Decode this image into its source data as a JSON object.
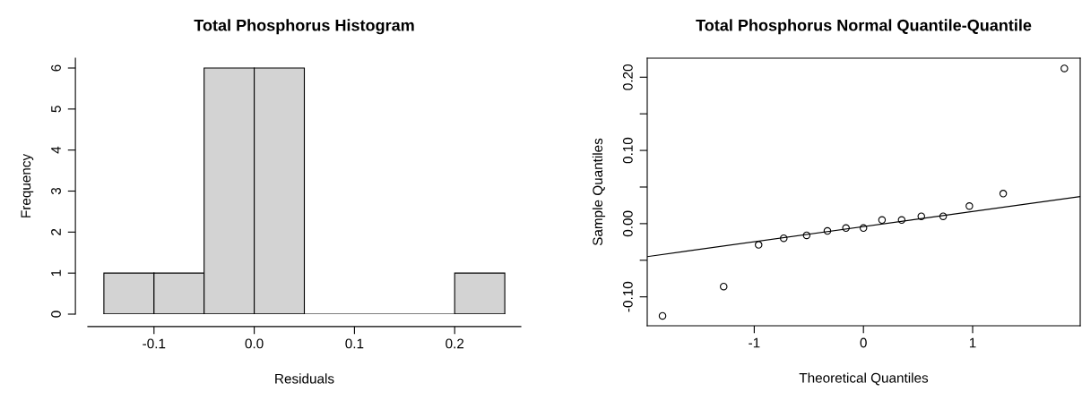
{
  "chart_data": [
    {
      "type": "histogram",
      "title": "Total Phosphorus Histogram",
      "xlabel": "Residuals",
      "ylabel": "Frequency",
      "bins": [
        -0.15,
        -0.1,
        -0.05,
        0.0,
        0.05,
        0.1,
        0.15,
        0.2,
        0.25
      ],
      "values": [
        1,
        1,
        6,
        6,
        0,
        0,
        0,
        1
      ],
      "color": "#d3d3d3",
      "xlim": [
        -0.166,
        0.266
      ],
      "xticks": [
        {
          "value": -0.1,
          "label": "-0.1"
        },
        {
          "value": 0.0,
          "label": "0.0"
        },
        {
          "value": 0.1,
          "label": "0.1"
        },
        {
          "value": 0.2,
          "label": "0.2"
        }
      ],
      "ylim": [
        0,
        6.24
      ],
      "yticks": [
        0,
        1,
        2,
        3,
        4,
        5,
        6
      ],
      "grid": false
    },
    {
      "type": "scatter",
      "title": "Total Phosphorus Normal Quantile-Quantile",
      "xlabel": "Theoretical Quantiles",
      "ylabel": "Sample Quantiles",
      "series": [
        {
          "type": "scatter",
          "color": "#000000",
          "marker": "circle",
          "x": [
            -1.84,
            -1.28,
            -0.96,
            -0.73,
            -0.52,
            -0.33,
            -0.16,
            0.0,
            0.17,
            0.35,
            0.53,
            0.73,
            0.97,
            1.28,
            1.84
          ],
          "values": [
            -0.126,
            -0.086,
            -0.029,
            -0.02,
            -0.016,
            -0.01,
            -0.006,
            -0.006,
            0.005,
            0.005,
            0.01,
            0.01,
            0.024,
            0.041,
            0.212
          ]
        },
        {
          "type": "line",
          "color": "#000000",
          "x": [
            -1.98,
            1.985
          ],
          "values": [
            -0.045,
            0.037
          ]
        }
      ],
      "xlim": [
        -1.98,
        1.985
      ],
      "xticks": [
        {
          "value": -1,
          "label": "-1"
        },
        0,
        1
      ],
      "ylim": [
        -0.1395,
        0.226
      ],
      "yticks": [
        {
          "value": -0.1,
          "label": "-0.10"
        },
        {
          "value": -0.05,
          "label": null
        },
        {
          "value": 0.0,
          "label": "0.00"
        },
        {
          "value": 0.05,
          "label": null
        },
        {
          "value": 0.1,
          "label": "0.10"
        },
        {
          "value": 0.15,
          "label": null
        },
        {
          "value": 0.2,
          "label": "0.20"
        }
      ],
      "grid": false
    }
  ]
}
